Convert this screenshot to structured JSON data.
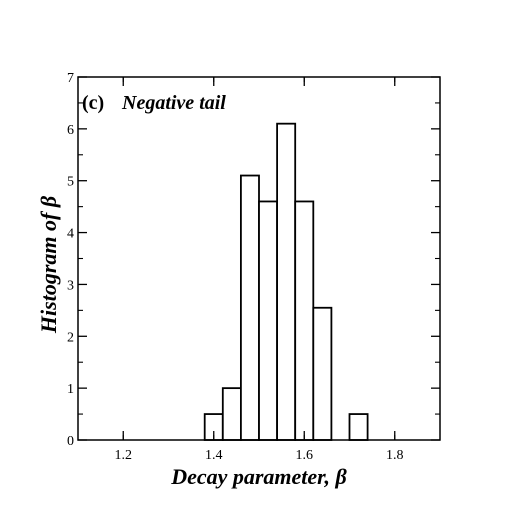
{
  "chart_data": {
    "type": "bar",
    "panel_label": "(c)",
    "title": "Negative tail",
    "xlabel": "Decay parameter, β",
    "ylabel": "Histogram of  β",
    "xlim": [
      1.1,
      1.9
    ],
    "ylim": [
      0,
      7
    ],
    "xticks": [
      1.2,
      1.4,
      1.6,
      1.8
    ],
    "xtick_labels": [
      "1.2",
      "1.4",
      "1.6",
      "1.8"
    ],
    "yticks": [
      0,
      1,
      2,
      3,
      4,
      5,
      6,
      7
    ],
    "ytick_labels": [
      "0",
      "1",
      "2",
      "3",
      "4",
      "5",
      "6",
      "7"
    ],
    "grid": false,
    "legend": "none",
    "bin_width": 0.04,
    "bins": [
      {
        "left": 1.38,
        "value": 0.5
      },
      {
        "left": 1.42,
        "value": 1.0
      },
      {
        "left": 1.46,
        "value": 5.1
      },
      {
        "left": 1.5,
        "value": 4.6
      },
      {
        "left": 1.54,
        "value": 6.1
      },
      {
        "left": 1.58,
        "value": 4.6
      },
      {
        "left": 1.62,
        "value": 2.55
      },
      {
        "left": 1.66,
        "value": 0.0
      },
      {
        "left": 1.7,
        "value": 0.5
      }
    ],
    "colors": {
      "bar_fill": "#ffffff",
      "bar_stroke": "#000000",
      "axis": "#000000"
    }
  }
}
